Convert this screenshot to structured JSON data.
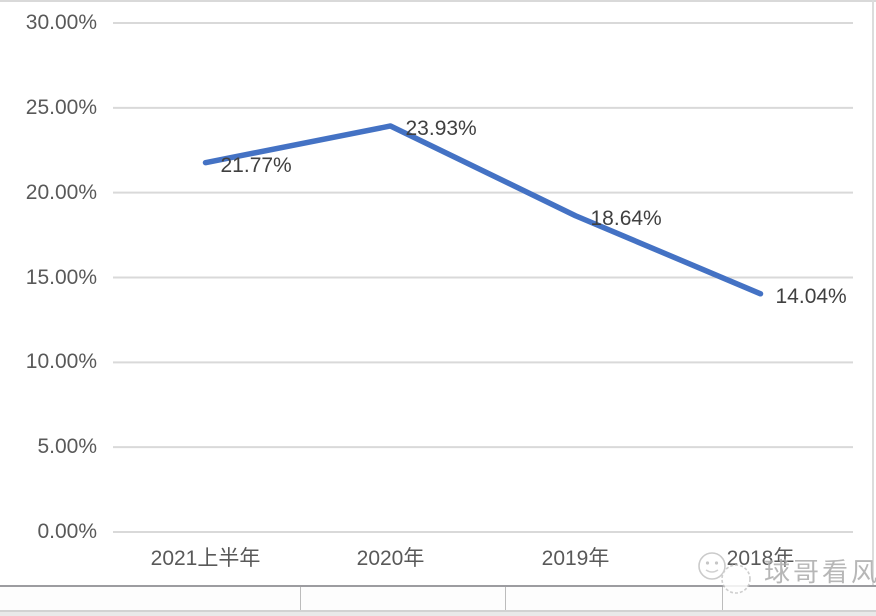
{
  "chart_data": {
    "type": "line",
    "categories": [
      "2021上半年",
      "2020年",
      "2019年",
      "2018年"
    ],
    "values": [
      21.77,
      23.93,
      18.64,
      14.04
    ],
    "data_labels": [
      "21.77%",
      "23.93%",
      "18.64%",
      "14.04%"
    ],
    "y_ticks": [
      {
        "label": "30.00%",
        "value": 30
      },
      {
        "label": "25.00%",
        "value": 25
      },
      {
        "label": "20.00%",
        "value": 20
      },
      {
        "label": "15.00%",
        "value": 15
      },
      {
        "label": "10.00%",
        "value": 10
      },
      {
        "label": "5.00%",
        "value": 5
      },
      {
        "label": "0.00%",
        "value": 0
      }
    ],
    "title": "",
    "xlabel": "",
    "ylabel": "",
    "ylim": [
      0,
      30
    ],
    "grid": true,
    "legend_position": "none",
    "line_color": "#4472C4",
    "gridline_color": "#d9d9d9",
    "axis_label_color": "#595959",
    "data_label_color": "#404040"
  },
  "watermark": {
    "text": "球哥看风"
  },
  "bottom_row": {
    "cells": [
      "",
      "",
      "",
      ""
    ]
  }
}
